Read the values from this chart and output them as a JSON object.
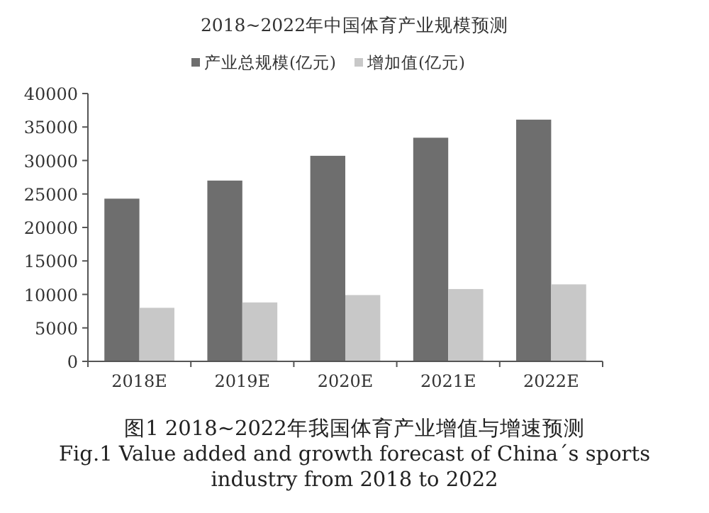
{
  "chart_data": {
    "type": "bar",
    "title": "2018~2022年中国体育产业规模预测",
    "categories": [
      "2018E",
      "2019E",
      "2020E",
      "2021E",
      "2022E"
    ],
    "series": [
      {
        "name": "产业总规模(亿元)",
        "color": "#6e6e6e",
        "values": [
          24300,
          27000,
          30700,
          33400,
          36100
        ]
      },
      {
        "name": "增加值(亿元)",
        "color": "#c8c8c8",
        "values": [
          8000,
          8800,
          9900,
          10800,
          11500
        ]
      }
    ],
    "ylim": [
      0,
      40000
    ],
    "yticks": [
      0,
      5000,
      10000,
      15000,
      20000,
      25000,
      30000,
      35000,
      40000
    ],
    "grid": false,
    "legend": "top",
    "annotations": [
      "图1 2018~2022年我国体育产业增值与增速预测",
      "Fig.1 Value added and growth forecast of China´s sports industry from 2018 to 2022"
    ]
  }
}
